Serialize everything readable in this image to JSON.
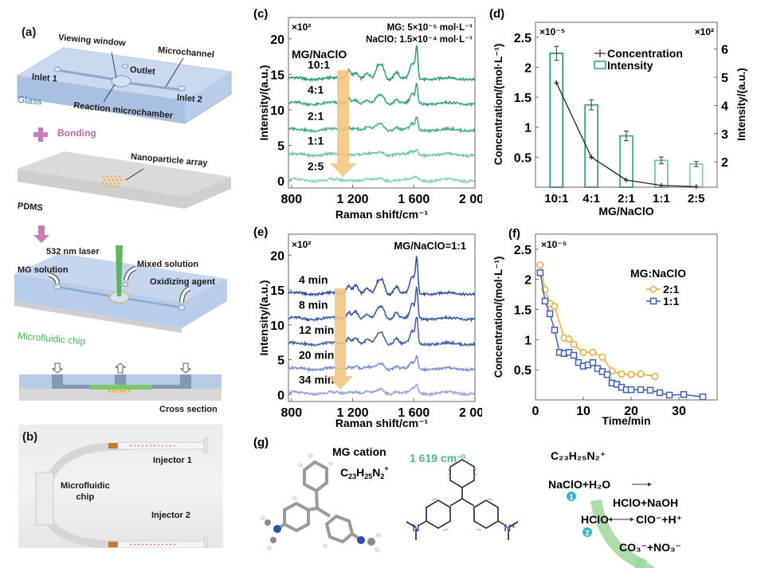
{
  "panel_a": {
    "label": "(a)",
    "viewing_window": "Viewing window",
    "microchannel": "Microchannel",
    "outlet": "Outlet",
    "inlet1": "Inlet 1",
    "inlet2": "Inlet 2",
    "glass": "Glass",
    "reaction_chamber": "Reaction microchamber",
    "bonding": "Bonding",
    "nanoparticle_array": "Nanoparticle array",
    "pdms": "PDMS",
    "laser": "532 nm laser",
    "mg_solution": "MG solution",
    "mixed_solution": "Mixed solution",
    "oxidizing_agent": "Oxidizing agent",
    "microfluidic_chip": "Microfluidic chip",
    "cross_section": "Cross section",
    "colors": {
      "glass": "#a9c4e6",
      "bonding": "#c77dba",
      "laser": "#4caf50",
      "chip_label": "#3db54a",
      "nanoparticle": "#f2b84b"
    }
  },
  "panel_b": {
    "label": "(b)",
    "injector1": "Injector 1",
    "injector2": "Injector 2",
    "chip_line1": "Microfluidic",
    "chip_line2": "chip"
  },
  "chart_data": [
    {
      "id": "c",
      "label": "(c)",
      "type": "line",
      "title": "",
      "xlabel": "Raman shift/cm⁻¹",
      "ylabel": "Intensity/(a.u.)",
      "xlim": [
        780,
        2000
      ],
      "ylim": [
        -1,
        23
      ],
      "xticks": [
        800,
        1200,
        1600,
        2000
      ],
      "xtick_labels": [
        "800",
        "1 200",
        "1 600",
        "2 000"
      ],
      "yticks": [
        0,
        5,
        10,
        15,
        20
      ],
      "yscale_note": "×10²",
      "annotation1": "MG: 5×10⁻⁵ mol·L⁻¹",
      "annotation2": "NaClO: 1.5×10⁻⁴ mol·L⁻¹",
      "legend_title": "MG/NaClO",
      "series": [
        {
          "name": "10:1",
          "baseline": 14.4,
          "peak_scale": 1.0,
          "color": "#2e9a78"
        },
        {
          "name": "4:1",
          "baseline": 10.9,
          "peak_scale": 0.6,
          "color": "#37a282"
        },
        {
          "name": "2:1",
          "baseline": 7.2,
          "peak_scale": 0.38,
          "color": "#45ab8c"
        },
        {
          "name": "1:1",
          "baseline": 3.7,
          "peak_scale": 0.15,
          "color": "#6cc3a7"
        },
        {
          "name": "2:5",
          "baseline": 0.1,
          "peak_scale": 0.1,
          "color": "#86cfb8"
        }
      ],
      "peaks_cm": [
        1175,
        1220,
        1295,
        1365,
        1395,
        1485,
        1590,
        1619
      ],
      "peak_heights": [
        1.3,
        0.9,
        0.6,
        1.6,
        1.7,
        1.0,
        2.0,
        4.2
      ]
    },
    {
      "id": "d",
      "label": "(d)",
      "type": "bar",
      "categories": [
        "10:1",
        "4:1",
        "2:1",
        "1:1",
        "2:5"
      ],
      "xlabel": "MG/NaClO",
      "ylabel": "Concentration/(mol·L⁻¹)",
      "y2label": "Intensity/(a.u.)",
      "ylim": [
        0,
        2.75
      ],
      "y2lim": [
        1.1,
        6.95
      ],
      "yticks": [
        0.5,
        1,
        1.5,
        2,
        2.5
      ],
      "y2ticks": [
        2,
        3,
        4,
        5,
        6
      ],
      "yscale_note": "×10⁻⁵",
      "y2scale_note": "×10²",
      "series": [
        {
          "name": "Concentration",
          "axis": "left",
          "type": "line",
          "values": [
            1.74,
            0.5,
            0.12,
            0.03,
            0.01
          ],
          "color": "#222222"
        },
        {
          "name": "Intensity",
          "axis": "right",
          "type": "bar",
          "values": [
            5.85,
            4.02,
            2.92,
            2.05,
            1.92
          ],
          "errors": [
            0.25,
            0.18,
            0.17,
            0.12,
            0.09
          ],
          "color": "#2e9a78"
        }
      ]
    },
    {
      "id": "e",
      "label": "(e)",
      "type": "line",
      "xlabel": "Raman shift/cm⁻¹",
      "ylabel": "Intensity/(a.u.)",
      "xlim": [
        780,
        2000
      ],
      "ylim": [
        -1,
        23
      ],
      "xticks": [
        800,
        1200,
        1600,
        2000
      ],
      "xtick_labels": [
        "800",
        "1 200",
        "1 600",
        "2 000"
      ],
      "yticks": [
        0,
        5,
        10,
        15,
        20
      ],
      "yscale_note": "×10²",
      "annotation1": "MG/NaClO=1:1",
      "series": [
        {
          "name": "4 min",
          "baseline": 14.5,
          "peak_scale": 1.0,
          "color": "#2f4f9e"
        },
        {
          "name": "8 min",
          "baseline": 10.9,
          "peak_scale": 0.85,
          "color": "#3656a6"
        },
        {
          "name": "12 min",
          "baseline": 7.3,
          "peak_scale": 0.75,
          "color": "#3d5dab"
        },
        {
          "name": "20 min",
          "baseline": 3.7,
          "peak_scale": 0.35,
          "color": "#7a8fd0"
        },
        {
          "name": "34 min",
          "baseline": 0.2,
          "peak_scale": 0.25,
          "color": "#95a3d8"
        }
      ],
      "peaks_cm": [
        1175,
        1220,
        1295,
        1365,
        1395,
        1485,
        1590,
        1619
      ],
      "peak_heights": [
        1.2,
        1.3,
        0.6,
        1.5,
        1.8,
        1.1,
        2.3,
        4.8
      ]
    },
    {
      "id": "f",
      "label": "(f)",
      "type": "line",
      "xlabel": "Time/min",
      "ylabel": "Concentration/(mol·L⁻¹)",
      "xlim": [
        0,
        38
      ],
      "ylim": [
        0,
        2.75
      ],
      "xticks": [
        0,
        10,
        20,
        30
      ],
      "yticks": [
        0.5,
        1,
        1.5,
        2,
        2.5
      ],
      "yscale_note": "×10⁻⁵",
      "legend_title": "MG:NaClO",
      "series": [
        {
          "name": "2:1",
          "marker": "circle",
          "color": "#f0a830",
          "x": [
            1,
            2,
            3,
            4,
            6,
            7,
            8,
            10,
            12,
            14,
            16,
            18,
            20,
            22,
            25
          ],
          "y": [
            2.24,
            1.83,
            1.6,
            1.55,
            1.03,
            1.01,
            0.92,
            0.79,
            0.79,
            0.71,
            0.48,
            0.43,
            0.42,
            0.43,
            0.39
          ]
        },
        {
          "name": "1:1",
          "marker": "square",
          "color": "#3e5fb5",
          "x": [
            1,
            2,
            3,
            4,
            5,
            6,
            7,
            8,
            9,
            10,
            11,
            12,
            13,
            14,
            15,
            16,
            17,
            18,
            19,
            20,
            22,
            24,
            26,
            28,
            31,
            35
          ],
          "y": [
            2.11,
            1.64,
            1.43,
            1.16,
            0.79,
            0.77,
            0.79,
            0.74,
            0.62,
            0.56,
            0.58,
            0.62,
            0.52,
            0.47,
            0.42,
            0.28,
            0.26,
            0.21,
            0.17,
            0.17,
            0.17,
            0.16,
            0.12,
            0.08,
            0.09,
            0.05
          ]
        }
      ]
    }
  ],
  "panel_g": {
    "label": "(g)",
    "mg_cation": "MG cation",
    "formula_main": "C",
    "formula_c": "23",
    "formula_h": "25",
    "formula_n": "2",
    "raman_band": "1 619 cm⁻¹",
    "reaction_start": "C₂₃H₂₅N₂⁺",
    "reaction1_left": "NaClO+H₂O",
    "reaction1_right": "HClO+NaOH",
    "reaction2_left": "HClO",
    "reaction2_right": "ClO⁻+H⁺",
    "products": "CO₃⁻+NO₃⁻",
    "step1": "1",
    "step2": "2",
    "n_label": "N",
    "n_plus_label": "N⁺",
    "colors": {
      "band": "#4dbb74",
      "nitrogen": "#2a4fa8",
      "step": "#37b8c4",
      "arrow": "#8fd08a"
    }
  }
}
